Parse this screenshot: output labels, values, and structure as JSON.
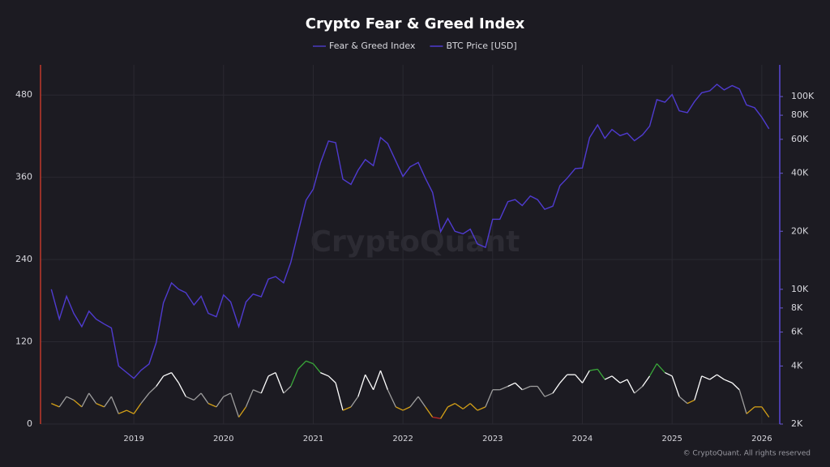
{
  "chart_data": {
    "type": "line",
    "title": "Crypto Fear & Greed Index",
    "watermark": "CryptoQuant",
    "footer": "© CryptoQuant. All rights reserved",
    "x": [
      2018.08,
      2018.17,
      2018.25,
      2018.33,
      2018.42,
      2018.5,
      2018.58,
      2018.67,
      2018.75,
      2018.83,
      2018.92,
      2019.0,
      2019.08,
      2019.17,
      2019.25,
      2019.33,
      2019.42,
      2019.5,
      2019.58,
      2019.67,
      2019.75,
      2019.83,
      2019.92,
      2020.0,
      2020.08,
      2020.17,
      2020.25,
      2020.33,
      2020.42,
      2020.5,
      2020.58,
      2020.67,
      2020.75,
      2020.83,
      2020.92,
      2021.0,
      2021.08,
      2021.17,
      2021.25,
      2021.33,
      2021.42,
      2021.5,
      2021.58,
      2021.67,
      2021.75,
      2021.83,
      2021.92,
      2022.0,
      2022.08,
      2022.17,
      2022.25,
      2022.33,
      2022.42,
      2022.5,
      2022.58,
      2022.67,
      2022.75,
      2022.83,
      2022.92,
      2023.0,
      2023.08,
      2023.17,
      2023.25,
      2023.33,
      2023.42,
      2023.5,
      2023.58,
      2023.67,
      2023.75,
      2023.83,
      2023.92,
      2024.0,
      2024.08,
      2024.17,
      2024.25,
      2024.33,
      2024.42,
      2024.5,
      2024.58,
      2024.67,
      2024.75,
      2024.83,
      2024.92,
      2025.0,
      2025.08,
      2025.17,
      2025.25,
      2025.33,
      2025.42,
      2025.5,
      2025.58,
      2025.67,
      2025.75,
      2025.83,
      2025.92,
      2026.0,
      2026.08
    ],
    "series": [
      {
        "name": "Fear & Greed Index",
        "color": "#4b3bbf",
        "thresholds": [
          20,
          40,
          60,
          80
        ],
        "level_colors": [
          "#c62828",
          "#d4a017",
          "#9e9e9e",
          "#ffffff",
          "#3aa83a"
        ],
        "values": [
          30,
          25,
          40,
          35,
          25,
          45,
          30,
          25,
          40,
          15,
          20,
          15,
          30,
          45,
          55,
          70,
          75,
          60,
          40,
          35,
          45,
          30,
          25,
          40,
          45,
          10,
          25,
          50,
          45,
          70,
          75,
          45,
          55,
          80,
          92,
          88,
          75,
          70,
          60,
          20,
          25,
          40,
          72,
          50,
          78,
          50,
          25,
          20,
          25,
          40,
          25,
          10,
          8,
          25,
          30,
          22,
          30,
          20,
          25,
          50,
          50,
          55,
          60,
          50,
          55,
          55,
          40,
          45,
          60,
          72,
          72,
          60,
          78,
          80,
          65,
          70,
          60,
          65,
          45,
          55,
          70,
          88,
          75,
          70,
          40,
          30,
          35,
          70,
          65,
          72,
          65,
          60,
          50,
          15,
          25,
          25,
          10
        ]
      },
      {
        "name": "BTC Price [USD]",
        "color": "#4f3bd0",
        "axis": "y2",
        "values": [
          10000,
          7000,
          9200,
          7500,
          6400,
          7700,
          7000,
          6600,
          6300,
          4000,
          3700,
          3450,
          3800,
          4100,
          5300,
          8500,
          10800,
          10000,
          9600,
          8300,
          9200,
          7500,
          7200,
          9350,
          8600,
          6400,
          8600,
          9450,
          9150,
          11300,
          11650,
          10800,
          13800,
          19700,
          29000,
          33100,
          45200,
          58800,
          57700,
          37300,
          35000,
          41500,
          47100,
          43800,
          61300,
          57000,
          46300,
          38500,
          43200,
          45500,
          37700,
          31800,
          19900,
          23300,
          20000,
          19400,
          20500,
          17200,
          16500,
          23100,
          23100,
          28500,
          29200,
          27200,
          30500,
          29200,
          26000,
          27000,
          34500,
          37700,
          42300,
          42600,
          61200,
          71300,
          60700,
          67500,
          62700,
          64600,
          59000,
          63300,
          70200,
          96400,
          93400,
          102400,
          84300,
          82500,
          94200,
          104600,
          107100,
          115700,
          108200,
          114000,
          109500,
          90500,
          87500,
          78000,
          68000
        ]
      }
    ],
    "xlim": [
      2017.96,
      2026.2
    ],
    "xticks": [
      2019,
      2020,
      2021,
      2022,
      2023,
      2024,
      2025,
      2026
    ],
    "ylim": [
      0,
      524
    ],
    "yticks": [
      0,
      120,
      240,
      360,
      480
    ],
    "y2lim": [
      2000,
      146000
    ],
    "y2log": true,
    "y2ticks": [
      {
        "value": 2000,
        "label": "2K"
      },
      {
        "value": 4000,
        "label": "4K"
      },
      {
        "value": 6000,
        "label": "6K"
      },
      {
        "value": 8000,
        "label": "8K"
      },
      {
        "value": 10000,
        "label": "10K"
      },
      {
        "value": 20000,
        "label": "20K"
      },
      {
        "value": 40000,
        "label": "40K"
      },
      {
        "value": 60000,
        "label": "60K"
      },
      {
        "value": 80000,
        "label": "80K"
      },
      {
        "value": 100000,
        "label": "100K"
      }
    ],
    "grid": true
  }
}
